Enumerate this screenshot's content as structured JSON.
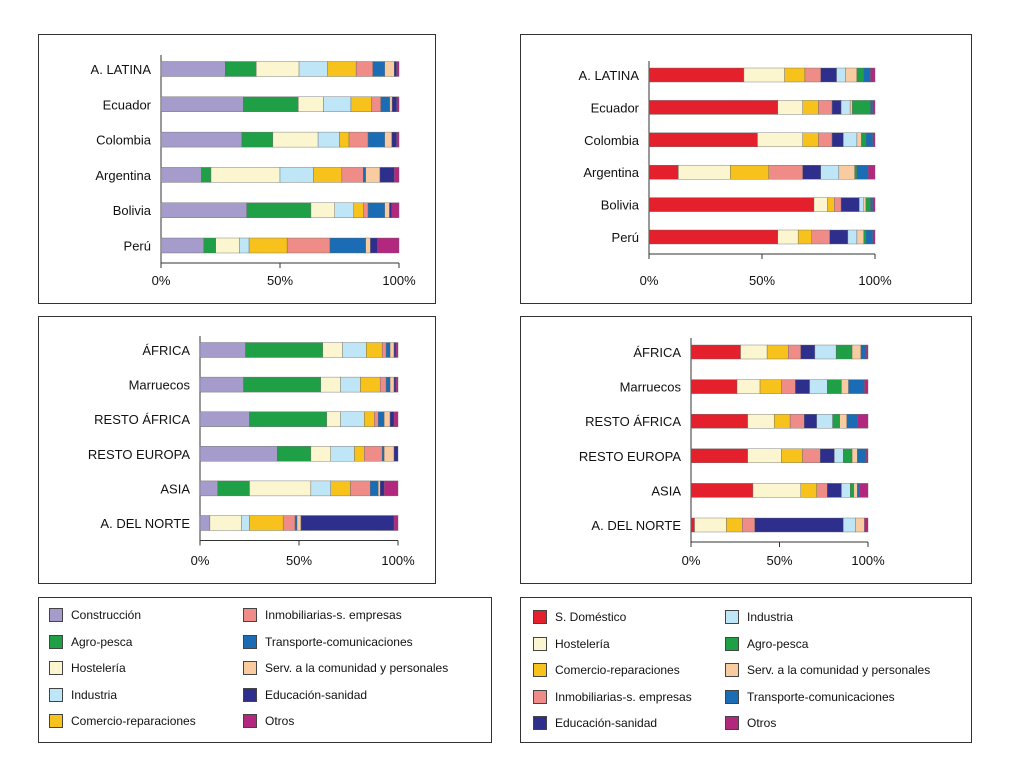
{
  "colors": {
    "Construcción": "#a59ccb",
    "Agro-pesca": "#1fa046",
    "Hostelería": "#fbf6d0",
    "Industria": "#bfe6f7",
    "Comercio-reparaciones": "#f7c21b",
    "Inmobiliarias-s. empresas": "#f08c88",
    "Transporte-comunicaciones": "#1a6cb5",
    "Serv. a la comunidad y personales": "#f9cba0",
    "Educación-sanidad": "#2e2f8c",
    "Otros": "#b3287f",
    "S. Doméstico": "#e3202b"
  },
  "legend_left": [
    [
      "Construcción",
      "Inmobiliarias-s. empresas"
    ],
    [
      "Agro-pesca",
      "Transporte-comunicaciones"
    ],
    [
      "Hostelería",
      "Serv. a la comunidad y personales"
    ],
    [
      "Industria",
      "Educación-sanidad"
    ],
    [
      "Comercio-reparaciones",
      "Otros"
    ]
  ],
  "legend_right": [
    [
      "S. Doméstico",
      "Industria"
    ],
    [
      "Hostelería",
      "Agro-pesca"
    ],
    [
      "Comercio-reparaciones",
      "Serv. a la comunidad y personales"
    ],
    [
      "Inmobiliarias-s. empresas",
      "Transporte-comunicaciones"
    ],
    [
      "Educación-sanidad",
      "Otros"
    ]
  ],
  "chart_data": [
    {
      "type": "bar",
      "stacked": "percent",
      "orientation": "horizontal",
      "categories": [
        "A. LATINA",
        "Ecuador",
        "Colombia",
        "Argentina",
        "Bolivia",
        "Perú"
      ],
      "ticks": [
        "0%",
        "50%",
        "100%"
      ],
      "series": [
        {
          "name": "Construcción",
          "values": [
            27,
            36,
            34,
            17,
            36,
            18
          ]
        },
        {
          "name": "Agro-pesca",
          "values": [
            13,
            24,
            13,
            4,
            27,
            5
          ]
        },
        {
          "name": "Hostelería",
          "values": [
            18,
            11,
            19,
            29,
            10,
            10
          ]
        },
        {
          "name": "Industria",
          "values": [
            12,
            12,
            9,
            14,
            8,
            4
          ]
        },
        {
          "name": "Comercio-reparaciones",
          "values": [
            12,
            9,
            4,
            12,
            4,
            16
          ]
        },
        {
          "name": "Inmobiliarias-s. empresas",
          "values": [
            7,
            4,
            8,
            9,
            2,
            18
          ]
        },
        {
          "name": "Transporte-comunicaciones",
          "values": [
            5,
            4,
            7,
            1,
            7,
            15
          ]
        },
        {
          "name": "Serv. a la comunidad y personales",
          "values": [
            4,
            1,
            3,
            6,
            2,
            2
          ]
        },
        {
          "name": "Educación-sanidad",
          "values": [
            1,
            2,
            2,
            6,
            1,
            3
          ]
        },
        {
          "name": "Otros",
          "values": [
            1,
            1,
            1,
            2,
            3,
            9
          ]
        }
      ]
    },
    {
      "type": "bar",
      "stacked": "percent",
      "orientation": "horizontal",
      "categories": [
        "A. LATINA",
        "Ecuador",
        "Colombia",
        "Argentina",
        "Bolivia",
        "Perú"
      ],
      "ticks": [
        "0%",
        "50%",
        "100%"
      ],
      "series": [
        {
          "name": "S. Doméstico",
          "values": [
            42,
            57,
            48,
            13,
            73,
            57
          ]
        },
        {
          "name": "Hostelería",
          "values": [
            18,
            11,
            20,
            23,
            6,
            9
          ]
        },
        {
          "name": "Comercio-reparaciones",
          "values": [
            9,
            7,
            7,
            17,
            3,
            6
          ]
        },
        {
          "name": "Inmobiliarias-s. empresas",
          "values": [
            7,
            6,
            6,
            15,
            3,
            8
          ]
        },
        {
          "name": "Educación-sanidad",
          "values": [
            7,
            4,
            5,
            8,
            8,
            8
          ]
        },
        {
          "name": "Industria",
          "values": [
            4,
            4,
            6,
            8,
            2,
            4
          ]
        },
        {
          "name": "Serv. a la comunidad y personales",
          "values": [
            5,
            1,
            2,
            7,
            1,
            3
          ]
        },
        {
          "name": "Agro-pesca",
          "values": [
            3,
            8,
            2,
            1,
            2,
            1
          ]
        },
        {
          "name": "Transporte-comunicaciones",
          "values": [
            3,
            1,
            3,
            5,
            1,
            3
          ]
        },
        {
          "name": "Otros",
          "values": [
            2,
            1,
            1,
            3,
            1,
            1
          ]
        }
      ]
    },
    {
      "type": "bar",
      "stacked": "percent",
      "orientation": "horizontal",
      "categories": [
        "ÁFRICA",
        "Marruecos",
        "RESTO ÁFRICA",
        "RESTO EUROPA",
        "ASIA",
        "A. DEL NORTE"
      ],
      "ticks": [
        "0%",
        "50%",
        "100%"
      ],
      "series": [
        {
          "name": "Construcción",
          "values": [
            23,
            22,
            25,
            39,
            9,
            5
          ]
        },
        {
          "name": "Agro-pesca",
          "values": [
            39,
            39,
            39,
            17,
            16,
            0
          ]
        },
        {
          "name": "Hostelería",
          "values": [
            10,
            10,
            7,
            10,
            31,
            16
          ]
        },
        {
          "name": "Industria",
          "values": [
            12,
            10,
            12,
            12,
            10,
            4
          ]
        },
        {
          "name": "Comercio-reparaciones",
          "values": [
            8,
            10,
            5,
            5,
            10,
            17
          ]
        },
        {
          "name": "Inmobiliarias-s. empresas",
          "values": [
            2,
            3,
            2,
            9,
            10,
            6
          ]
        },
        {
          "name": "Transporte-comunicaciones",
          "values": [
            2,
            2,
            3,
            1,
            4,
            1
          ]
        },
        {
          "name": "Serv. a la comunidad y personales",
          "values": [
            2,
            2,
            3,
            5,
            1,
            2
          ]
        },
        {
          "name": "Educación-sanidad",
          "values": [
            1,
            1,
            2,
            2,
            2,
            47
          ]
        },
        {
          "name": "Otros",
          "values": [
            1,
            1,
            2,
            0,
            7,
            2
          ]
        }
      ]
    },
    {
      "type": "bar",
      "stacked": "percent",
      "orientation": "horizontal",
      "categories": [
        "ÁFRICA",
        "Marruecos",
        "RESTO ÁFRICA",
        "RESTO EUROPA",
        "ASIA",
        "A. DEL NORTE"
      ],
      "ticks": [
        "0%",
        "50%",
        "100%"
      ],
      "series": [
        {
          "name": "S. Doméstico",
          "values": [
            28,
            26,
            32,
            32,
            35,
            2
          ]
        },
        {
          "name": "Hostelería",
          "values": [
            15,
            13,
            15,
            19,
            27,
            18
          ]
        },
        {
          "name": "Comercio-reparaciones",
          "values": [
            12,
            12,
            9,
            12,
            9,
            9
          ]
        },
        {
          "name": "Inmobiliarias-s. empresas",
          "values": [
            7,
            8,
            8,
            10,
            6,
            7
          ]
        },
        {
          "name": "Educación-sanidad",
          "values": [
            8,
            8,
            7,
            8,
            8,
            50
          ]
        },
        {
          "name": "Industria",
          "values": [
            12,
            10,
            9,
            5,
            5,
            7
          ]
        },
        {
          "name": "Agro-pesca",
          "values": [
            9,
            8,
            4,
            5,
            2,
            0
          ]
        },
        {
          "name": "Serv. a la comunidad y personales",
          "values": [
            5,
            4,
            4,
            3,
            2,
            5
          ]
        },
        {
          "name": "Transporte-comunicaciones",
          "values": [
            3,
            9,
            6,
            5,
            1,
            0
          ]
        },
        {
          "name": "Otros",
          "values": [
            1,
            2,
            6,
            1,
            5,
            2
          ]
        }
      ]
    }
  ]
}
